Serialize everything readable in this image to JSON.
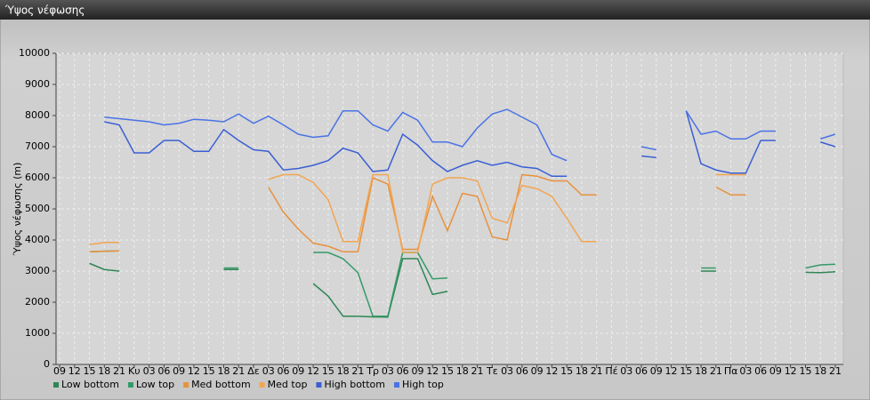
{
  "chart_data": {
    "type": "line",
    "title": "Ύψος νέφωσης",
    "y_label": "Ύψος νέφωσης (m)",
    "categories": [
      "09",
      "12",
      "15",
      "18",
      "21",
      "Κυ",
      "03",
      "06",
      "09",
      "12",
      "15",
      "18",
      "21",
      "Δε",
      "03",
      "06",
      "09",
      "12",
      "15",
      "18",
      "21",
      "Τρ",
      "03",
      "06",
      "09",
      "12",
      "15",
      "18",
      "21",
      "Τε",
      "03",
      "06",
      "09",
      "12",
      "15",
      "18",
      "21",
      "Πέ",
      "03",
      "06",
      "09",
      "12",
      "15",
      "18",
      "21",
      "Πα",
      "03",
      "06",
      "09",
      "12",
      "15",
      "18",
      "21"
    ],
    "ylim": [
      0,
      10000
    ],
    "yticks": [
      0,
      1000,
      2000,
      3000,
      4000,
      5000,
      6000,
      7000,
      8000,
      9000,
      10000
    ],
    "grid": true,
    "legend": "bottom-left",
    "series": [
      {
        "name": "Low bottom",
        "color": "#2f8656",
        "values": [
          null,
          null,
          3250,
          3050,
          3000,
          null,
          null,
          null,
          null,
          null,
          null,
          3050,
          3050,
          null,
          null,
          null,
          null,
          2600,
          2200,
          1550,
          1550,
          1530,
          1520,
          3400,
          3400,
          2250,
          2350,
          null,
          null,
          null,
          null,
          null,
          null,
          null,
          null,
          null,
          null,
          null,
          null,
          null,
          null,
          null,
          null,
          3000,
          3000,
          null,
          null,
          null,
          null,
          null,
          2960,
          2950,
          2980
        ]
      },
      {
        "name": "Low top",
        "color": "#349a68",
        "values": [
          null,
          null,
          3620,
          3640,
          3650,
          null,
          null,
          null,
          null,
          null,
          null,
          3100,
          3100,
          null,
          null,
          null,
          null,
          3600,
          3600,
          3400,
          2950,
          1550,
          1550,
          3600,
          3600,
          2750,
          2780,
          null,
          null,
          null,
          null,
          null,
          null,
          null,
          null,
          null,
          null,
          null,
          null,
          null,
          null,
          null,
          null,
          3100,
          3100,
          null,
          null,
          null,
          null,
          null,
          3100,
          3200,
          3220
        ]
      },
      {
        "name": "Med bottom",
        "color": "#e8913c",
        "values": [
          null,
          null,
          3620,
          3640,
          3650,
          null,
          null,
          null,
          null,
          null,
          null,
          null,
          null,
          null,
          5700,
          4900,
          4350,
          3900,
          3800,
          3620,
          3620,
          6000,
          5800,
          3700,
          3700,
          5400,
          4300,
          5500,
          5400,
          4100,
          4000,
          6100,
          6050,
          5900,
          5900,
          5450,
          5450,
          null,
          null,
          null,
          null,
          null,
          null,
          null,
          5700,
          5450,
          5450,
          null,
          null,
          null,
          null,
          null,
          null
        ]
      },
      {
        "name": "Med top",
        "color": "#f2a552",
        "values": [
          null,
          null,
          3850,
          3920,
          3920,
          null,
          null,
          null,
          null,
          null,
          null,
          null,
          null,
          null,
          5950,
          6100,
          6100,
          5850,
          5300,
          3950,
          3950,
          6100,
          6100,
          3600,
          3600,
          5800,
          6000,
          6000,
          5900,
          4700,
          4550,
          5750,
          5650,
          5400,
          4700,
          3950,
          3950,
          null,
          null,
          null,
          null,
          null,
          null,
          null,
          6100,
          6100,
          6100,
          null,
          null,
          null,
          null,
          null,
          null
        ]
      },
      {
        "name": "High bottom",
        "color": "#3a5fd4",
        "values": [
          null,
          null,
          null,
          7800,
          7700,
          6800,
          6800,
          7200,
          7200,
          6850,
          6850,
          7550,
          7200,
          6900,
          6850,
          6250,
          6300,
          6400,
          6550,
          6950,
          6800,
          6200,
          6250,
          7400,
          7050,
          6550,
          6200,
          6400,
          6550,
          6400,
          6500,
          6350,
          6300,
          6050,
          6050,
          null,
          null,
          null,
          null,
          6700,
          6650,
          null,
          8150,
          6450,
          6250,
          6150,
          6150,
          7200,
          7200,
          null,
          null,
          7150,
          7000
        ]
      },
      {
        "name": "High top",
        "color": "#4a72e6",
        "values": [
          null,
          null,
          null,
          7950,
          7900,
          7850,
          7800,
          7700,
          7750,
          7880,
          7850,
          7800,
          8050,
          7750,
          7980,
          7700,
          7400,
          7300,
          7350,
          8150,
          8150,
          7700,
          7500,
          8100,
          7850,
          7150,
          7150,
          7000,
          7600,
          8050,
          8200,
          7950,
          7700,
          6750,
          6550,
          null,
          null,
          null,
          null,
          7000,
          6900,
          null,
          8150,
          7400,
          7500,
          7250,
          7250,
          7500,
          7500,
          null,
          null,
          7250,
          7400
        ]
      }
    ]
  }
}
